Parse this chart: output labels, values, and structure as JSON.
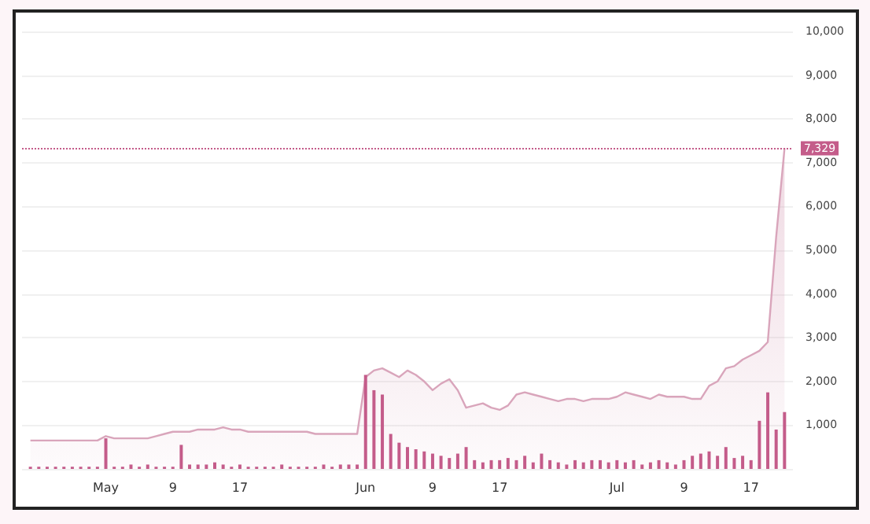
{
  "chart_data": {
    "type": "area",
    "xlim": [
      "--04-21",
      "--07-22"
    ],
    "xticks": [
      {
        "value": "--05-01",
        "label": "May"
      },
      {
        "value": "--05-09",
        "label": "9"
      },
      {
        "value": "--05-17",
        "label": "17"
      },
      {
        "value": "--06-01",
        "label": "Jun"
      },
      {
        "value": "--06-09",
        "label": "9"
      },
      {
        "value": "--06-17",
        "label": "17"
      },
      {
        "value": "--07-01",
        "label": "Jul"
      },
      {
        "value": "--07-09",
        "label": "9"
      },
      {
        "value": "--07-17",
        "label": "17"
      }
    ],
    "ylim": [
      0,
      10000
    ],
    "yticks": [
      {
        "value": 0,
        "label": null
      },
      {
        "value": 1000,
        "label": "1,000"
      },
      {
        "value": 2000,
        "label": "2,000"
      },
      {
        "value": 3000,
        "label": "3,000"
      },
      {
        "value": 4000,
        "label": "4,000"
      },
      {
        "value": 5000,
        "label": "5,000"
      },
      {
        "value": 6000,
        "label": "6,000"
      },
      {
        "value": 7000,
        "label": "7,000"
      },
      {
        "value": 8000,
        "label": "8,000"
      },
      {
        "value": 9000,
        "label": "9,000"
      },
      {
        "value": 10000,
        "label": "10,000"
      }
    ],
    "grid": "y",
    "marker": "none",
    "ref_lines": [
      {
        "axis": "y",
        "value": 7329,
        "label": "7,329",
        "color": "#c45c8a",
        "line_style": "dotted"
      }
    ],
    "series": [
      {
        "color": "#d9a5bb",
        "values": [
          650,
          650,
          650,
          650,
          650,
          650,
          650,
          650,
          650,
          750,
          700,
          700,
          700,
          700,
          700,
          750,
          800,
          850,
          850,
          850,
          900,
          900,
          900,
          950,
          900,
          900,
          850,
          850,
          850,
          850,
          850,
          850,
          850,
          850,
          800,
          800,
          800,
          800,
          800,
          800,
          2100,
          2250,
          2300,
          2200,
          2100,
          2250,
          2150,
          2000,
          1800,
          1950,
          2050,
          1800,
          1400,
          1450,
          1500,
          1400,
          1350,
          1450,
          1700,
          1750,
          1700,
          1650,
          1600,
          1550,
          1600,
          1600,
          1550,
          1600,
          1600,
          1600,
          1650,
          1750,
          1700,
          1650,
          1600,
          1700,
          1650,
          1650,
          1650,
          1600,
          1600,
          1900,
          2000,
          2300,
          2350,
          2500,
          2600,
          2700,
          2900,
          5300,
          7329
        ]
      },
      {
        "type": "bar",
        "color": "#c45c8a",
        "values": [
          50,
          50,
          50,
          50,
          50,
          50,
          50,
          50,
          50,
          700,
          50,
          50,
          100,
          50,
          100,
          50,
          50,
          50,
          550,
          100,
          100,
          100,
          150,
          100,
          50,
          100,
          50,
          50,
          50,
          50,
          100,
          50,
          50,
          50,
          50,
          100,
          50,
          100,
          100,
          100,
          2150,
          1800,
          1700,
          800,
          600,
          500,
          450,
          400,
          350,
          300,
          250,
          350,
          500,
          200,
          150,
          200,
          200,
          250,
          200,
          300,
          150,
          350,
          200,
          150,
          100,
          200,
          150,
          200,
          200,
          150,
          200,
          150,
          200,
          100,
          150,
          200,
          150,
          100,
          200,
          300,
          350,
          400,
          300,
          500,
          250,
          300,
          200,
          1100,
          1750,
          900,
          1300
        ]
      }
    ],
    "x": [
      "--04-22",
      "--04-23",
      "--04-24",
      "--04-25",
      "--04-26",
      "--04-27",
      "--04-28",
      "--04-29",
      "--04-30",
      "--05-01",
      "--05-02",
      "--05-03",
      "--05-04",
      "--05-05",
      "--05-06",
      "--05-07",
      "--05-08",
      "--05-09",
      "--05-10",
      "--05-11",
      "--05-12",
      "--05-13",
      "--05-14",
      "--05-15",
      "--05-16",
      "--05-17",
      "--05-18",
      "--05-19",
      "--05-20",
      "--05-21",
      "--05-22",
      "--05-23",
      "--05-24",
      "--05-25",
      "--05-26",
      "--05-27",
      "--05-28",
      "--05-29",
      "--05-30",
      "--05-31",
      "--06-01",
      "--06-02",
      "--06-03",
      "--06-04",
      "--06-05",
      "--06-06",
      "--06-07",
      "--06-08",
      "--06-09",
      "--06-10",
      "--06-11",
      "--06-12",
      "--06-13",
      "--06-14",
      "--06-15",
      "--06-16",
      "--06-17",
      "--06-18",
      "--06-19",
      "--06-20",
      "--06-21",
      "--06-22",
      "--06-23",
      "--06-24",
      "--06-25",
      "--06-26",
      "--06-27",
      "--06-28",
      "--06-29",
      "--06-30",
      "--07-01",
      "--07-02",
      "--07-03",
      "--07-04",
      "--07-05",
      "--07-06",
      "--07-07",
      "--07-08",
      "--07-09",
      "--07-10",
      "--07-11",
      "--07-12",
      "--07-13",
      "--07-14",
      "--07-15",
      "--07-16",
      "--07-17",
      "--07-18",
      "--07-19",
      "--07-20",
      "--07-21"
    ]
  }
}
